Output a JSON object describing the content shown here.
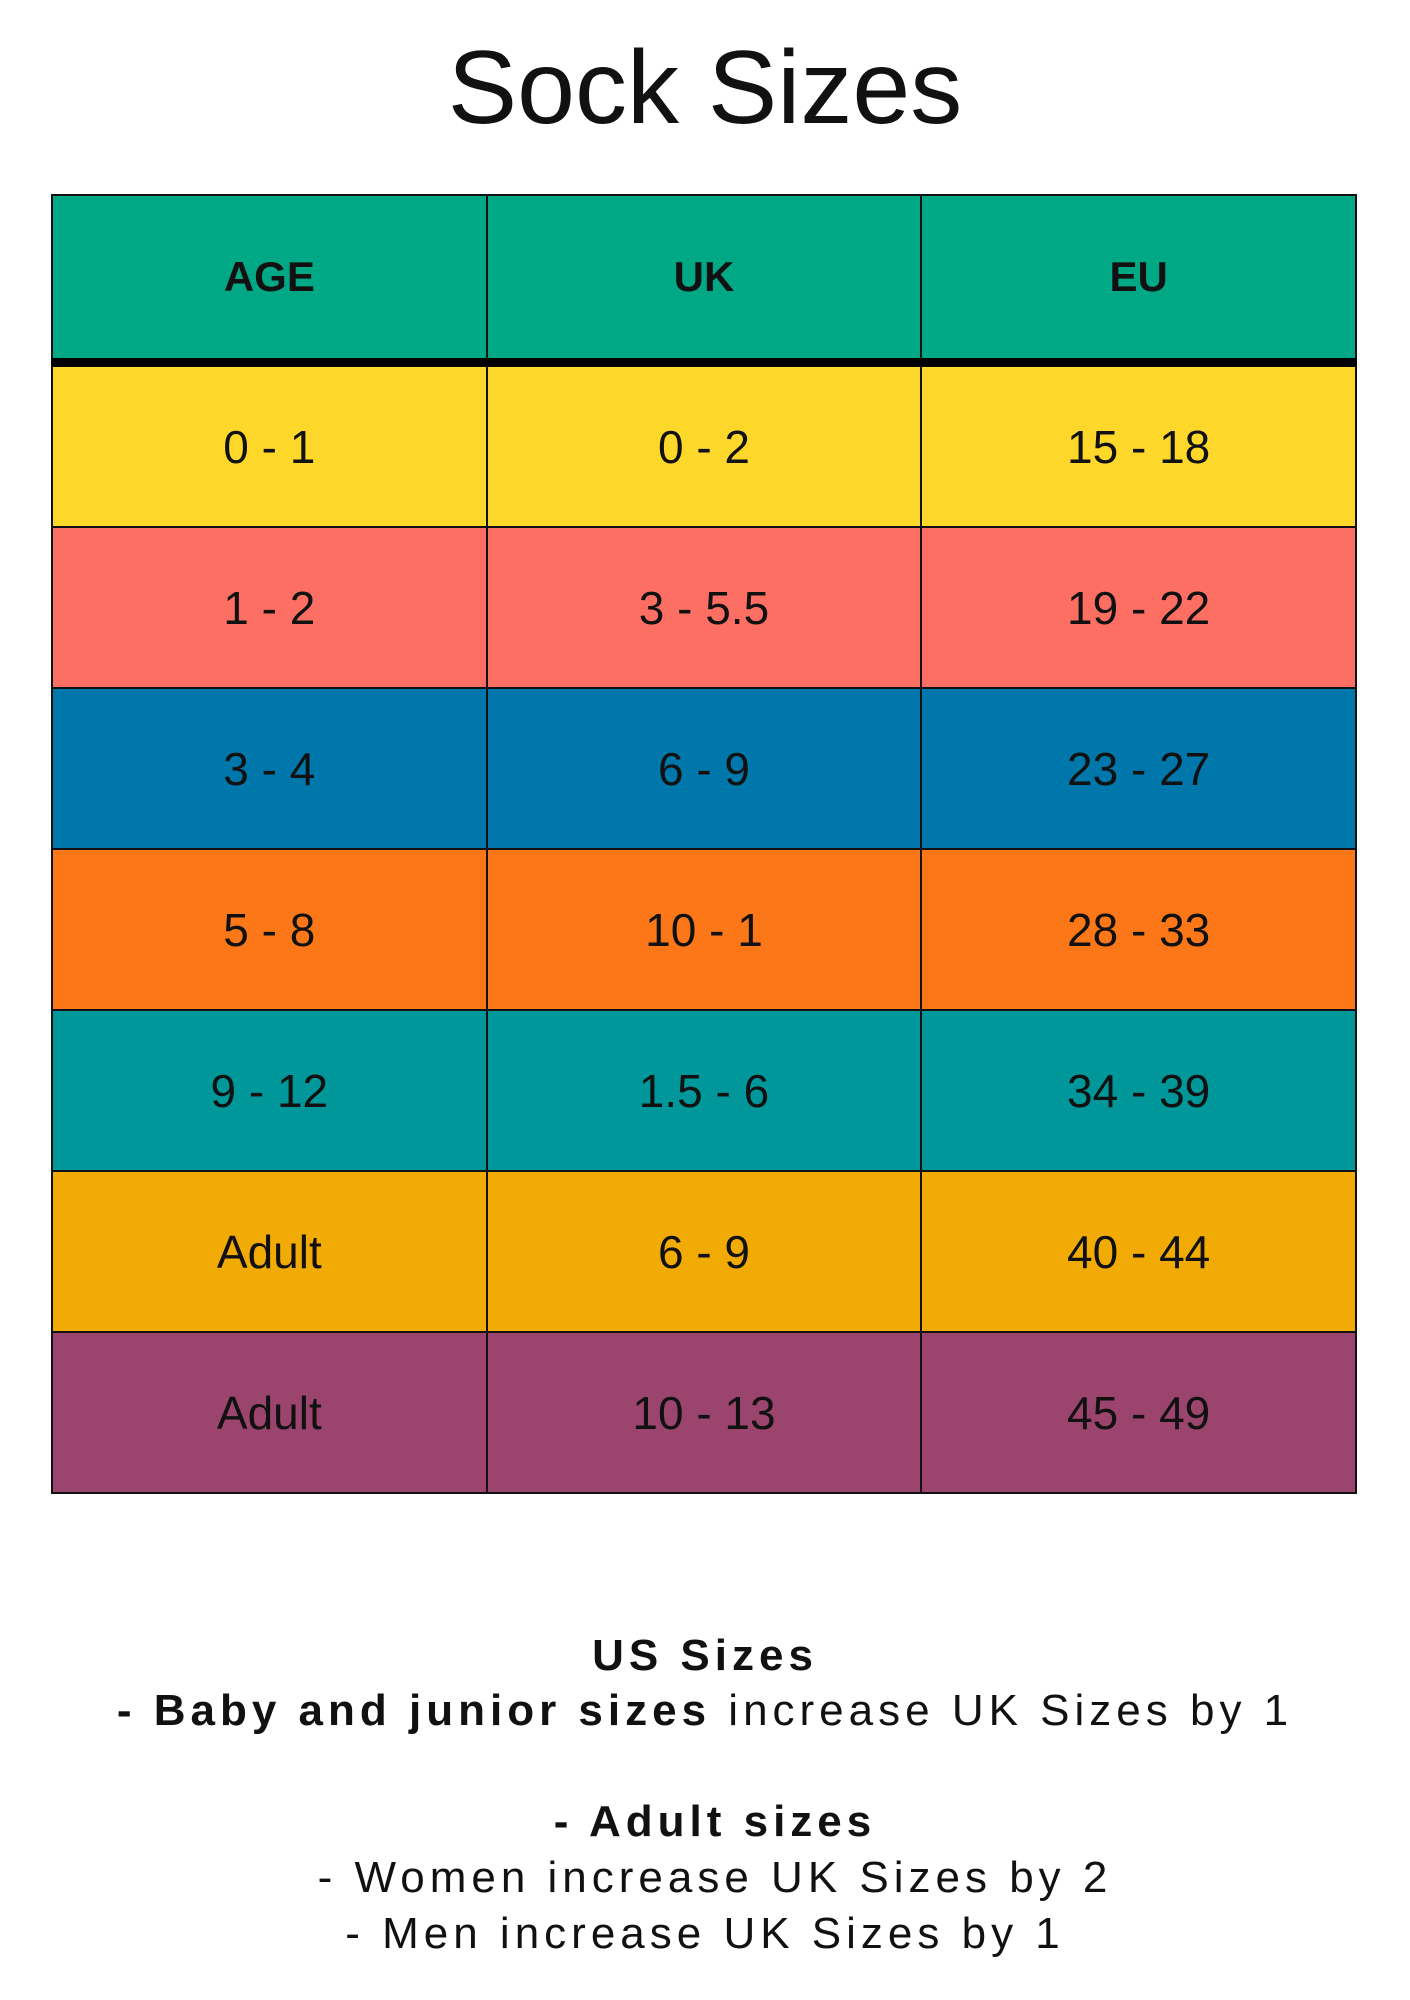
{
  "title": "Sock Sizes",
  "table": {
    "headers": [
      "AGE",
      "UK",
      "EU"
    ],
    "rows": [
      [
        "0 - 1",
        "0 - 2",
        "15 - 18"
      ],
      [
        "1 - 2",
        "3 - 5.5",
        "19 - 22"
      ],
      [
        "3 - 4",
        "6 - 9",
        "23 - 27"
      ],
      [
        "5 - 8",
        "10 - 1",
        "28 - 33"
      ],
      [
        "9 - 12",
        "1.5 - 6",
        "34 - 39"
      ],
      [
        "Adult",
        "6 - 9",
        "40 - 44"
      ],
      [
        "Adult",
        "10 - 13",
        "45 - 49"
      ]
    ]
  },
  "notes": {
    "heading": "US Sizes",
    "junior": {
      "bold": "- Baby and junior sizes",
      "text": " increase UK Sizes by 1"
    },
    "adult_heading": "- Adult sizes",
    "women": "- Women increase UK Sizes by 2",
    "men": "- Men increase UK Sizes by 1"
  }
}
